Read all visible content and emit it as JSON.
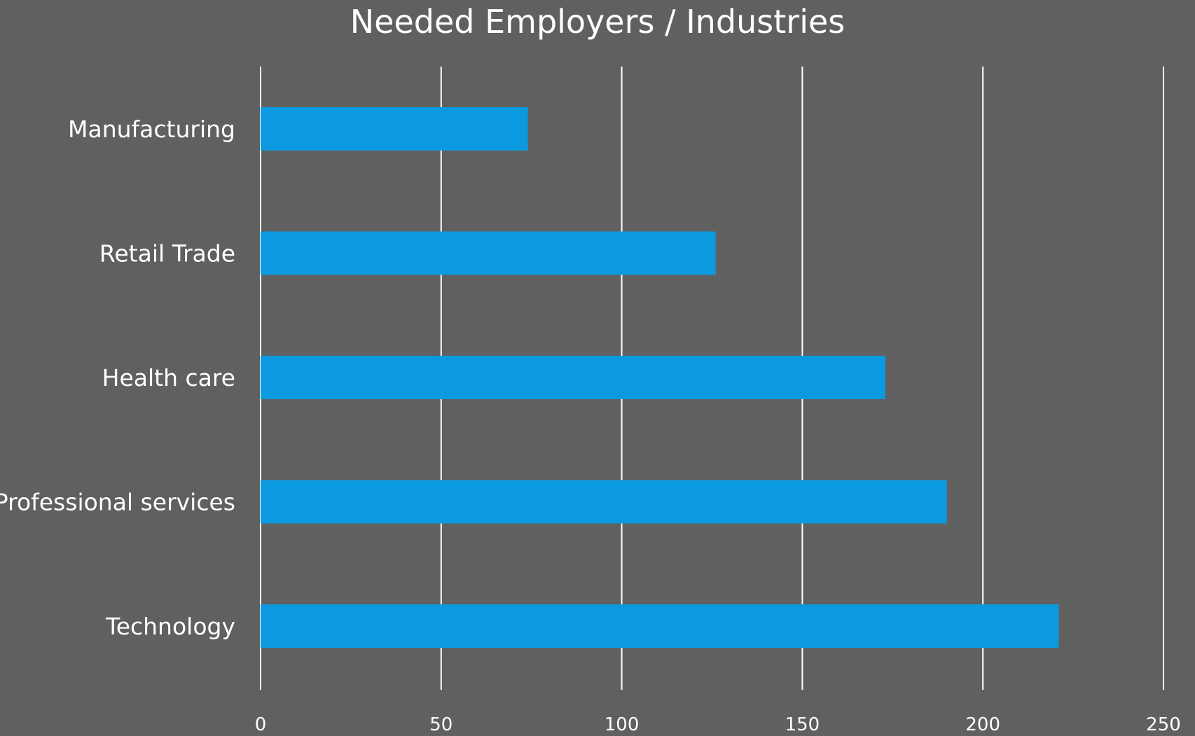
{
  "chart_data": {
    "type": "bar",
    "orientation": "horizontal",
    "title": "Needed Employers / Industries",
    "xlabel": "",
    "ylabel": "",
    "categories": [
      "Manufacturing",
      "Retail Trade",
      "Health care",
      "Professional services",
      "Technology"
    ],
    "values": [
      74,
      126,
      173,
      190,
      221
    ],
    "xlim": [
      0,
      250
    ],
    "x_ticks": [
      "0",
      "50",
      "100",
      "150",
      "200",
      "250"
    ],
    "grid": "vertical",
    "legend": "none",
    "colors": {
      "background": "#606060",
      "bar": "#0B9ADF",
      "grid": "#FFFFFF",
      "text": "#FFFFFF"
    }
  }
}
